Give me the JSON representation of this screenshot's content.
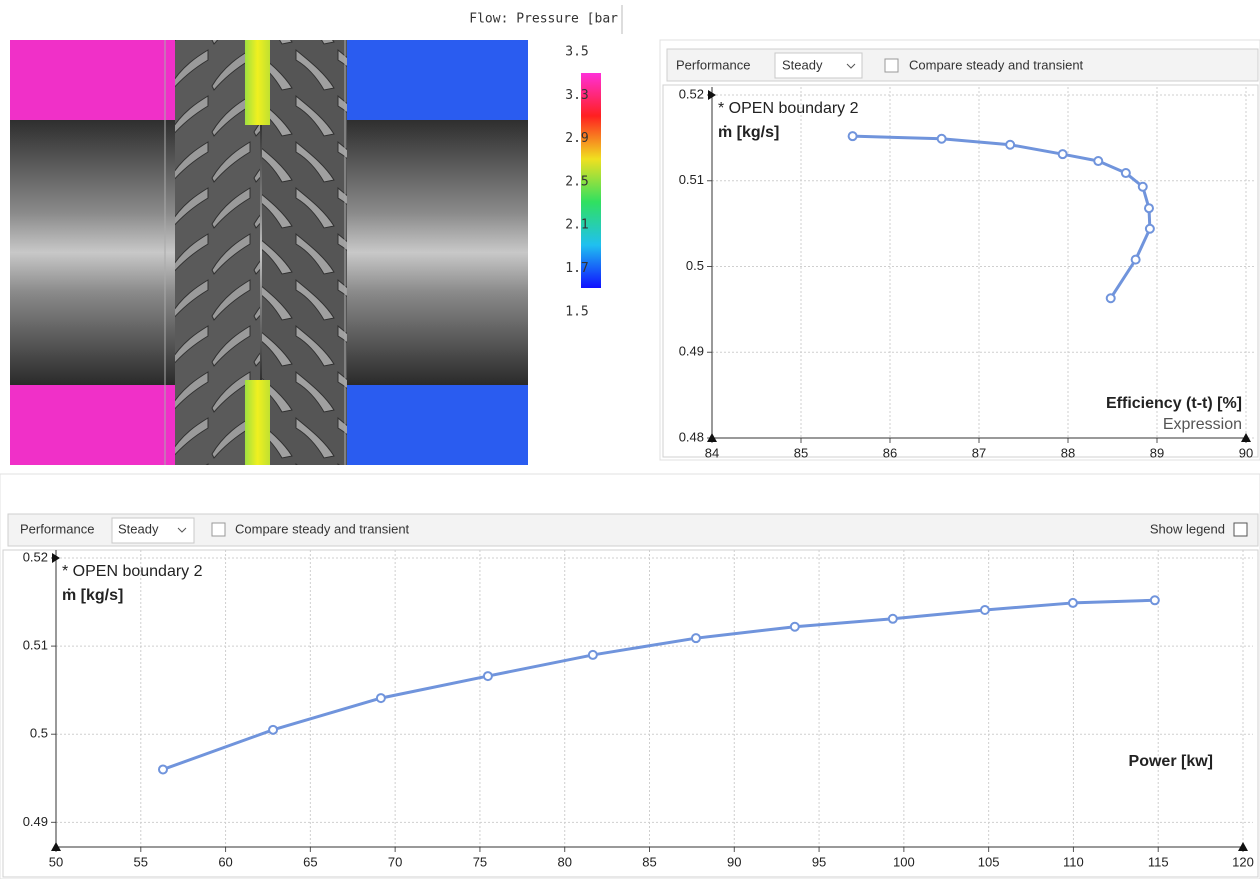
{
  "render": {
    "title": "Flow: Pressure [bar",
    "colorbar_labels": [
      "3.5",
      "3.3",
      "2.9",
      "2.5",
      "2.1",
      "1.7",
      "1.5"
    ]
  },
  "panels": [
    {
      "toolbar": {
        "label": "Performance",
        "mode": "Steady",
        "compare": "Compare steady and transient"
      }
    },
    {
      "toolbar": {
        "label": "Performance",
        "mode": "Steady",
        "compare": "Compare steady and transient",
        "legend": "Show legend"
      }
    }
  ],
  "chart_data": [
    {
      "type": "line",
      "subtitle": "* OPEN boundary 2",
      "ylabel": "ṁ [kg/s]",
      "xlabel": "Efficiency (t-t) [%]",
      "xlabel_note": "Expression",
      "x": [
        85.58,
        86.58,
        87.35,
        87.94,
        88.34,
        88.65,
        88.84,
        88.91,
        88.92,
        88.76,
        88.48
      ],
      "values": [
        0.5152,
        0.5149,
        0.5142,
        0.5131,
        0.5123,
        0.5109,
        0.5093,
        0.5068,
        0.5044,
        0.5008,
        0.4963
      ],
      "color": "#7094dc",
      "xlim": [
        84,
        90
      ],
      "ylim": [
        0.48,
        0.52
      ],
      "xticks": [
        84,
        85,
        86,
        87,
        88,
        89,
        90
      ],
      "yticks": [
        0.48,
        0.49,
        0.5,
        0.51,
        0.52
      ],
      "grid": true
    },
    {
      "type": "line",
      "subtitle": "* OPEN boundary 2",
      "ylabel": "ṁ [kg/s]",
      "xlabel": "Power [kw]",
      "x": [
        56.31,
        62.8,
        69.16,
        75.47,
        81.66,
        87.74,
        93.57,
        99.35,
        104.78,
        109.97,
        114.8
      ],
      "values": [
        0.496,
        0.5005,
        0.5041,
        0.5066,
        0.509,
        0.5109,
        0.5122,
        0.5131,
        0.5141,
        0.5149,
        0.5152
      ],
      "color": "#7094dc",
      "xlim": [
        50,
        120
      ],
      "ylim": [
        0.4872,
        0.52
      ],
      "xticks": [
        50,
        55,
        60,
        65,
        70,
        75,
        80,
        85,
        90,
        95,
        100,
        105,
        110,
        115,
        120
      ],
      "yticks": [
        0.49,
        0.5,
        0.51,
        0.52
      ],
      "grid": true
    }
  ]
}
